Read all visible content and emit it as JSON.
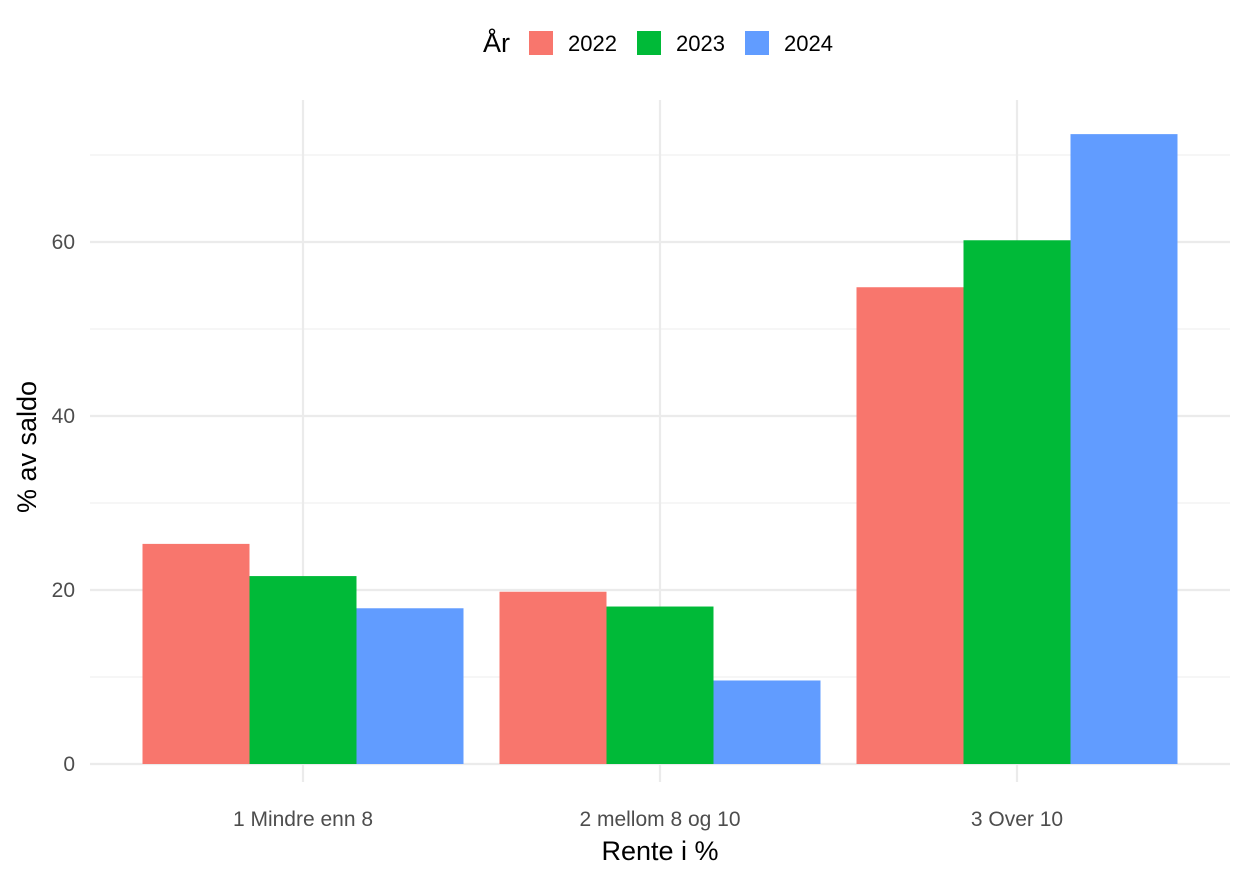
{
  "chart_data": {
    "type": "bar",
    "categories": [
      "1 Mindre enn 8",
      "2 mellom 8 og 10",
      "3 Over 10"
    ],
    "series": [
      {
        "name": "2022",
        "values": [
          25.3,
          19.8,
          54.8
        ],
        "color": "#F8766D"
      },
      {
        "name": "2023",
        "values": [
          21.6,
          18.1,
          60.2
        ],
        "color": "#00BA38"
      },
      {
        "name": "2024",
        "values": [
          17.9,
          9.6,
          72.4
        ],
        "color": "#619CFF"
      }
    ],
    "xlabel": "Rente i %",
    "ylabel": "% av saldo",
    "ylim": [
      0,
      76
    ],
    "yticks": [
      0,
      20,
      40,
      60
    ],
    "grid": true,
    "legend": {
      "title": "År",
      "placement": "top"
    }
  }
}
